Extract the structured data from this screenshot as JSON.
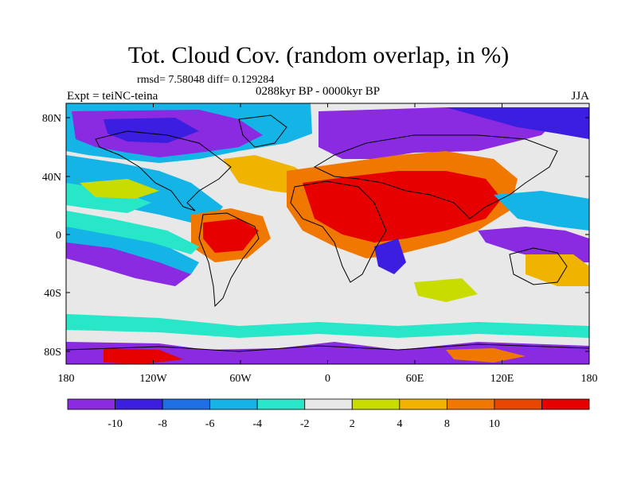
{
  "title": "Tot. Cloud Cov. (random overlap, in %)",
  "stats": "rmsd= 7.58048 diff= 0.129284",
  "experiment": "Expt = teiNC-teina",
  "period": "0288kyr BP - 0000kyr BP",
  "season": "JJA",
  "lat_ticks": [
    "80N",
    "40N",
    "0",
    "40S",
    "80S"
  ],
  "lon_ticks": [
    "180",
    "120W",
    "60W",
    "0",
    "60E",
    "120E",
    "180"
  ],
  "colorbar": {
    "colors": [
      "#8a2be2",
      "#3c1ee0",
      "#1e6ee6",
      "#14b4e6",
      "#28e6c8",
      "#e8e8e8",
      "#c8dc00",
      "#f0b400",
      "#f07800",
      "#e84600",
      "#e60000"
    ],
    "labels": [
      "-10",
      "-8",
      "-6",
      "-4",
      "-2",
      "2",
      "4",
      "8",
      "10"
    ]
  }
}
